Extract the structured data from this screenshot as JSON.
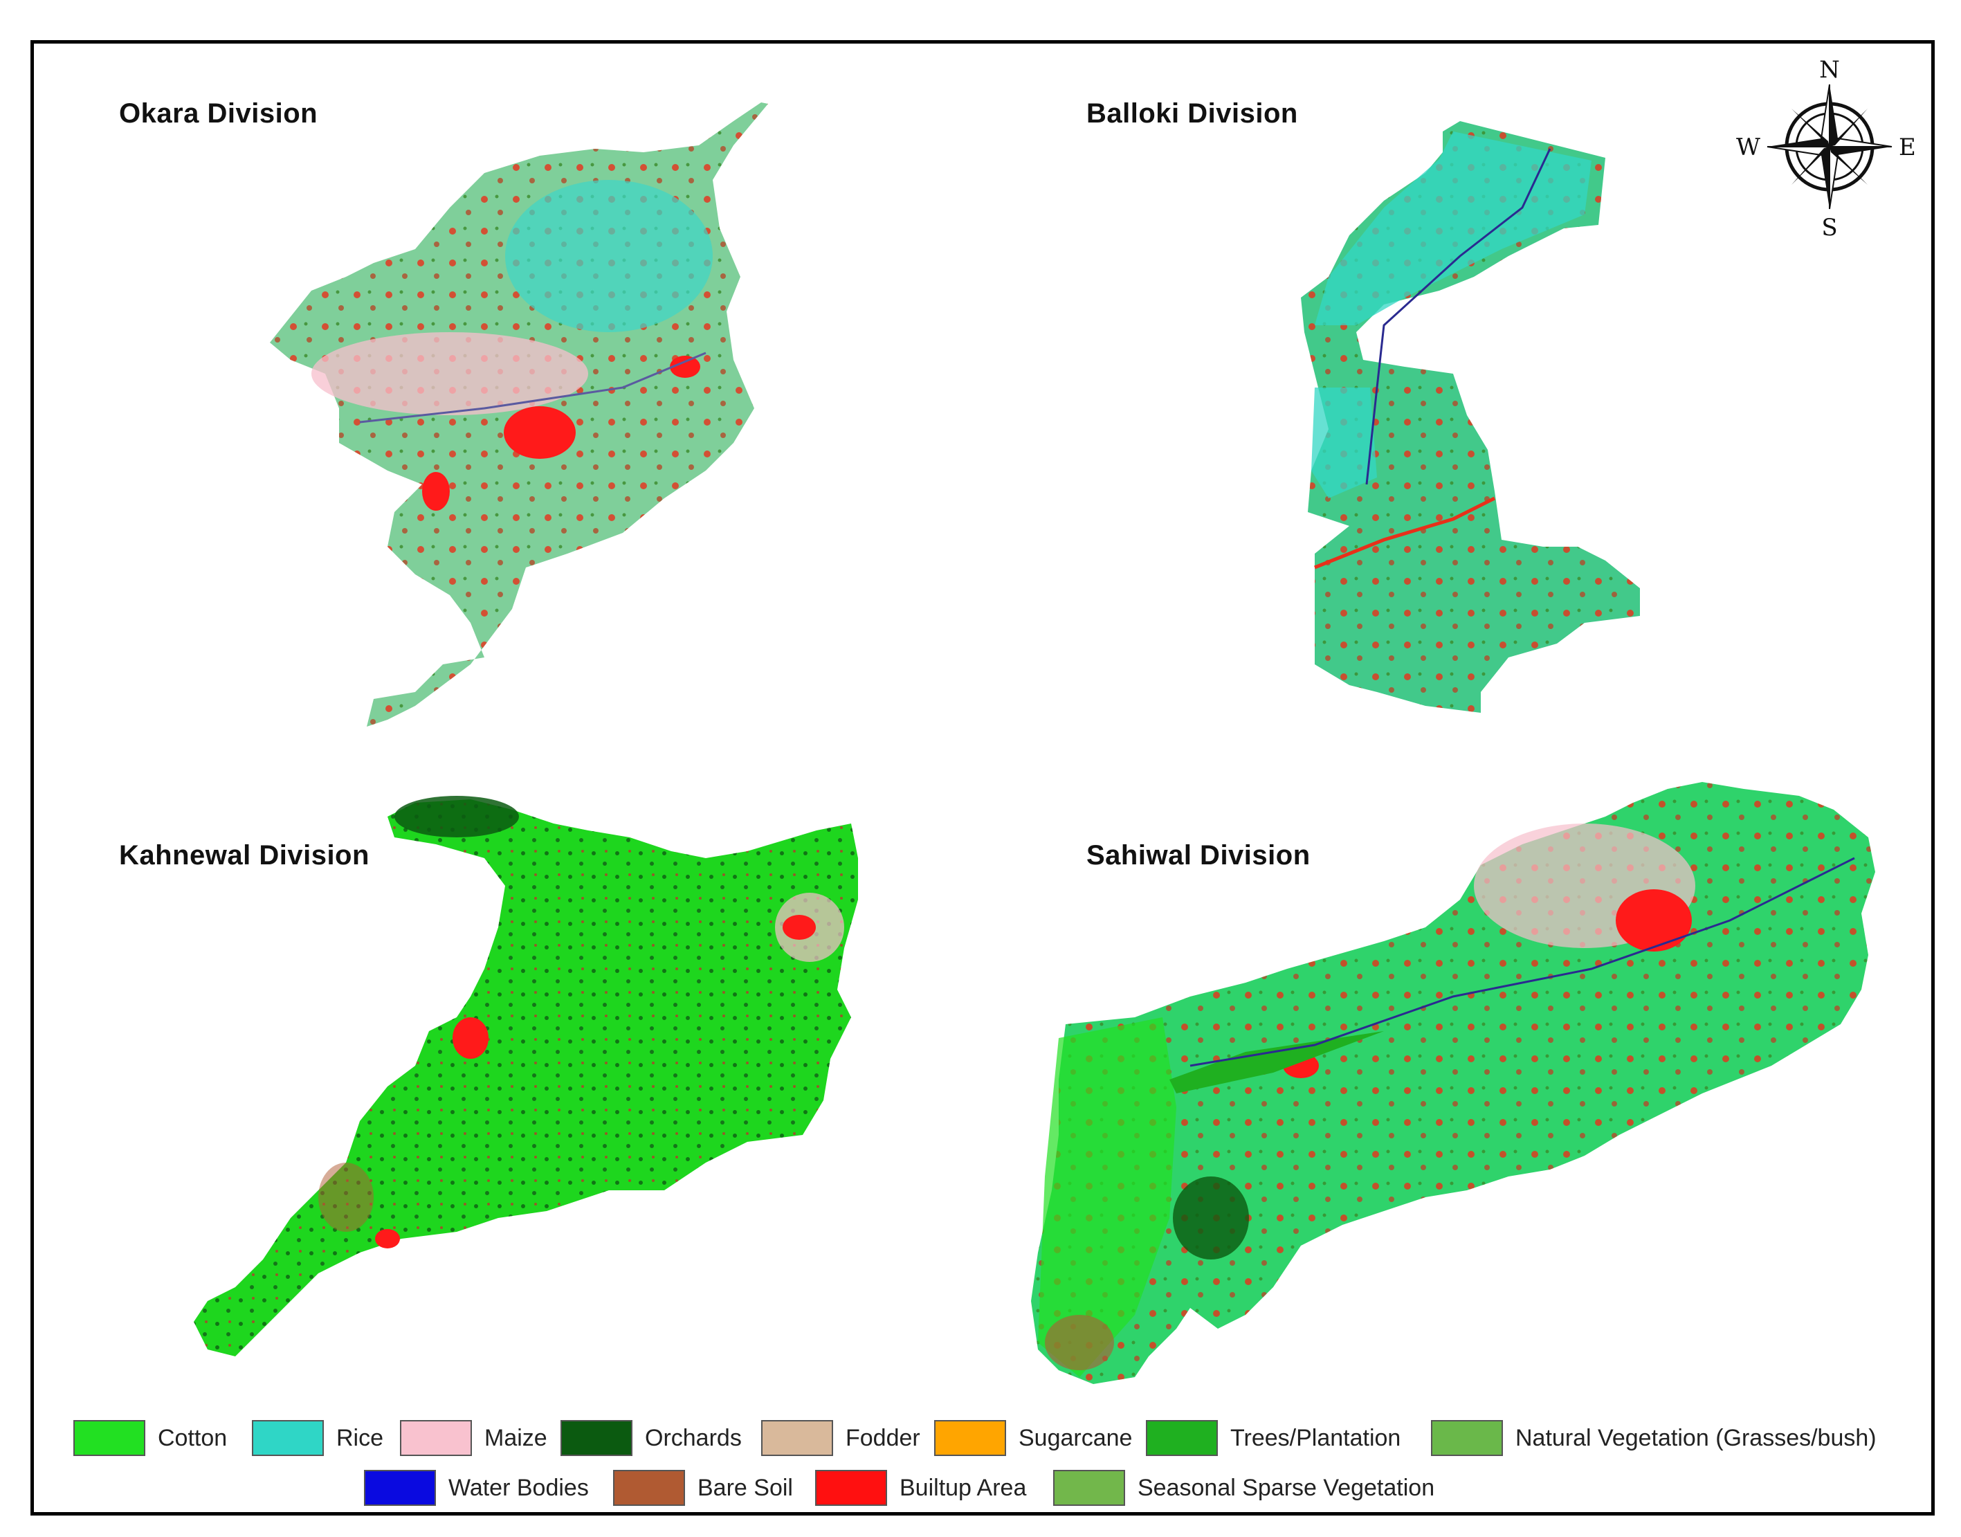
{
  "divisions": [
    {
      "id": "okara",
      "name": "Okara Division"
    },
    {
      "id": "balloki",
      "name": "Balloki Division"
    },
    {
      "id": "kahnewal",
      "name": "Kahnewal Division"
    },
    {
      "id": "sahiwal",
      "name": "Sahiwal Division"
    }
  ],
  "compass": {
    "n": "N",
    "e": "E",
    "s": "S",
    "w": "W"
  },
  "legend": {
    "items": [
      {
        "label": "Cotton",
        "color": "#22e022"
      },
      {
        "label": "Rice",
        "color": "#2fd6c6"
      },
      {
        "label": "Maize",
        "color": "#f9c2cf"
      },
      {
        "label": "Orchards",
        "color": "#0b5a10"
      },
      {
        "label": "Fodder",
        "color": "#d9b99b"
      },
      {
        "label": "Sugarcane",
        "color": "#ffa500"
      },
      {
        "label": "Trees/Plantation",
        "color": "#1fb020"
      },
      {
        "label": "Natural Vegetation (Grasses/bush)",
        "color": "#6ab84a"
      },
      {
        "label": "Water Bodies",
        "color": "#0a0ae0"
      },
      {
        "label": "Bare Soil",
        "color": "#b05a32"
      },
      {
        "label": "Builtup Area",
        "color": "#ff1010"
      },
      {
        "label": "Seasonal Sparse Vegetation",
        "color": "#72b74b"
      }
    ]
  }
}
